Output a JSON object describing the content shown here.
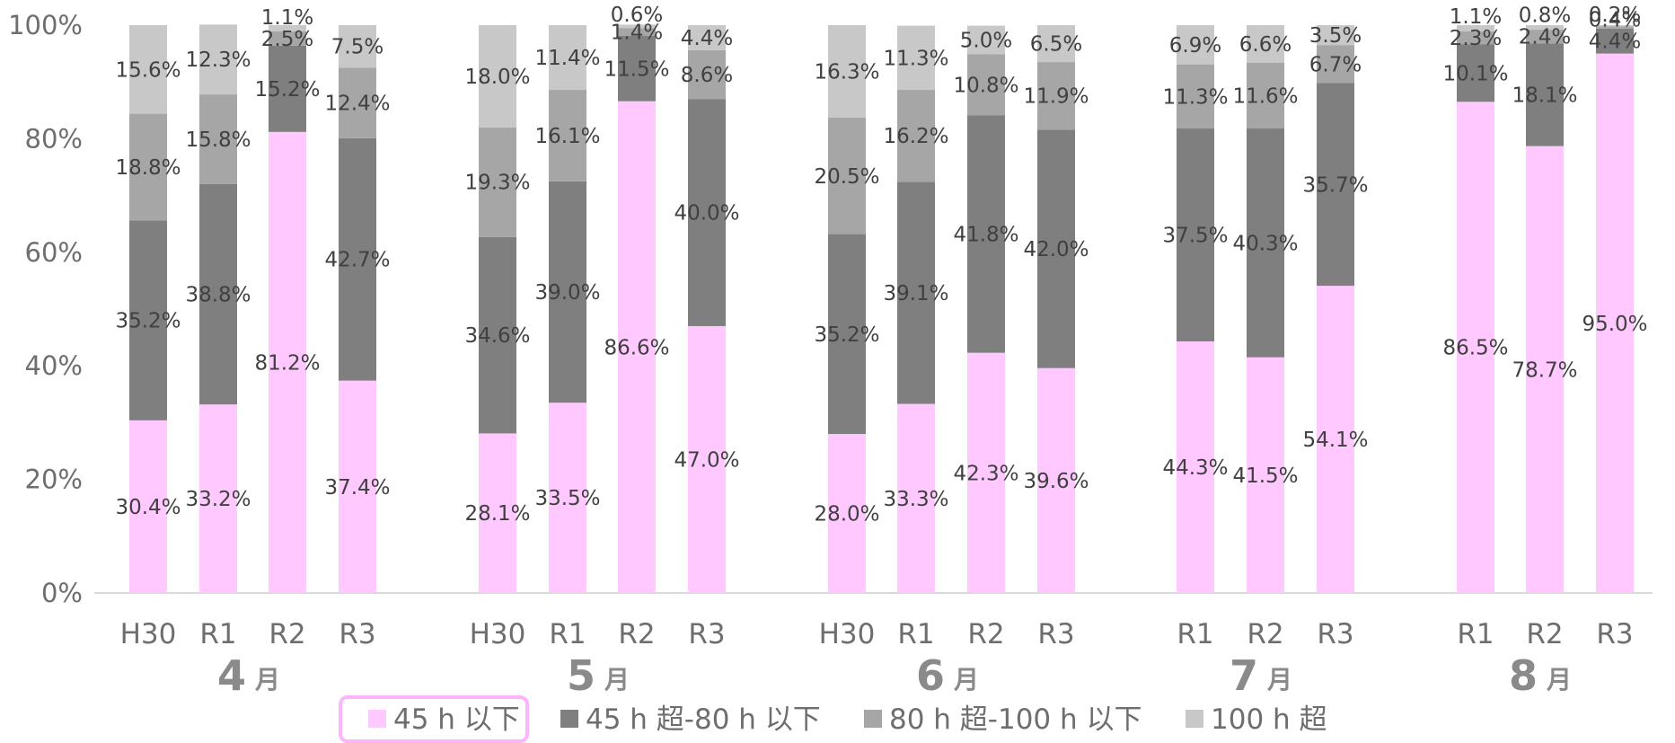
{
  "chart_data": {
    "type": "bar",
    "stacked": true,
    "percent": true,
    "ylim": [
      0,
      100
    ],
    "y_ticks": [
      "0%",
      "20%",
      "40%",
      "60%",
      "80%",
      "100%"
    ],
    "colors": [
      "#ffc8ff",
      "#7f7f7f",
      "#a6a6a6",
      "#c8c8c8"
    ],
    "legend": {
      "placement": "bottom",
      "highlight_color": "#ffb3ff",
      "items": [
        "45 h 以下",
        "45 h 超-80 h 以下",
        "80 h 超-100 h 以下",
        "100 h 超"
      ]
    },
    "groups": [
      {
        "num": "4",
        "unit": "月",
        "bars": [
          {
            "x": "H30",
            "values": [
              30.4,
              35.2,
              18.8,
              15.6
            ],
            "labels": [
              "30.4%",
              "35.2%",
              "18.8%",
              "15.6%"
            ]
          },
          {
            "x": "R1",
            "values": [
              33.2,
              38.8,
              15.8,
              12.3
            ],
            "labels": [
              "33.2%",
              "38.8%",
              "15.8%",
              "12.3%"
            ]
          },
          {
            "x": "R2",
            "values": [
              81.2,
              15.2,
              2.5,
              1.1
            ],
            "labels": [
              "81.2%",
              "15.2%",
              "2.5%",
              "1.1%"
            ]
          },
          {
            "x": "R3",
            "values": [
              37.4,
              42.7,
              12.4,
              7.5
            ],
            "labels": [
              "37.4%",
              "42.7%",
              "12.4%",
              "7.5%"
            ]
          }
        ]
      },
      {
        "num": "5",
        "unit": "月",
        "bars": [
          {
            "x": "H30",
            "values": [
              28.1,
              34.6,
              19.3,
              18.0
            ],
            "labels": [
              "28.1%",
              "34.6%",
              "19.3%",
              "18.0%"
            ]
          },
          {
            "x": "R1",
            "values": [
              33.5,
              39.0,
              16.1,
              11.4
            ],
            "labels": [
              "33.5%",
              "39.0%",
              "16.1%",
              "11.4%"
            ]
          },
          {
            "x": "R2",
            "values": [
              86.6,
              11.5,
              1.4,
              0.6
            ],
            "labels": [
              "86.6%",
              "11.5%",
              "1.4%",
              "0.6%"
            ]
          },
          {
            "x": "R3",
            "values": [
              47.0,
              40.0,
              8.6,
              4.4
            ],
            "labels": [
              "47.0%",
              "40.0%",
              "8.6%",
              "4.4%"
            ]
          }
        ]
      },
      {
        "num": "6",
        "unit": "月",
        "bars": [
          {
            "x": "H30",
            "values": [
              28.0,
              35.2,
              20.5,
              16.3
            ],
            "labels": [
              "28.0%",
              "35.2%",
              "20.5%",
              "16.3%"
            ]
          },
          {
            "x": "R1",
            "values": [
              33.3,
              39.1,
              16.2,
              11.3
            ],
            "labels": [
              "33.3%",
              "39.1%",
              "16.2%",
              "11.3%"
            ]
          },
          {
            "x": "R2",
            "values": [
              42.3,
              41.8,
              10.8,
              5.0
            ],
            "labels": [
              "42.3%",
              "41.8%",
              "10.8%",
              "5.0%"
            ]
          },
          {
            "x": "R3",
            "values": [
              39.6,
              42.0,
              11.9,
              6.5
            ],
            "labels": [
              "39.6%",
              "42.0%",
              "11.9%",
              "6.5%"
            ]
          }
        ]
      },
      {
        "num": "7",
        "unit": "月",
        "bars": [
          {
            "x": "R1",
            "values": [
              44.3,
              37.5,
              11.3,
              6.9
            ],
            "labels": [
              "44.3%",
              "37.5%",
              "11.3%",
              "6.9%"
            ]
          },
          {
            "x": "R2",
            "values": [
              41.5,
              40.3,
              11.6,
              6.6
            ],
            "labels": [
              "41.5%",
              "40.3%",
              "11.6%",
              "6.6%"
            ]
          },
          {
            "x": "R3",
            "values": [
              54.1,
              35.7,
              6.7,
              3.5
            ],
            "labels": [
              "54.1%",
              "35.7%",
              "6.7%",
              "3.5%"
            ]
          }
        ]
      },
      {
        "num": "8",
        "unit": "月",
        "bars": [
          {
            "x": "R1",
            "values": [
              86.5,
              10.1,
              2.3,
              1.1
            ],
            "labels": [
              "86.5%",
              "10.1%",
              "2.3%",
              "1.1%"
            ]
          },
          {
            "x": "R2",
            "values": [
              78.7,
              18.1,
              2.4,
              0.8
            ],
            "labels": [
              "78.7%",
              "18.1%",
              "2.4%",
              "0.8%"
            ]
          },
          {
            "x": "R3",
            "values": [
              95.0,
              4.4,
              0.4,
              0.2
            ],
            "labels": [
              "95.0%",
              "4.4%",
              "0.4%",
              "0.2%"
            ]
          }
        ]
      }
    ]
  }
}
